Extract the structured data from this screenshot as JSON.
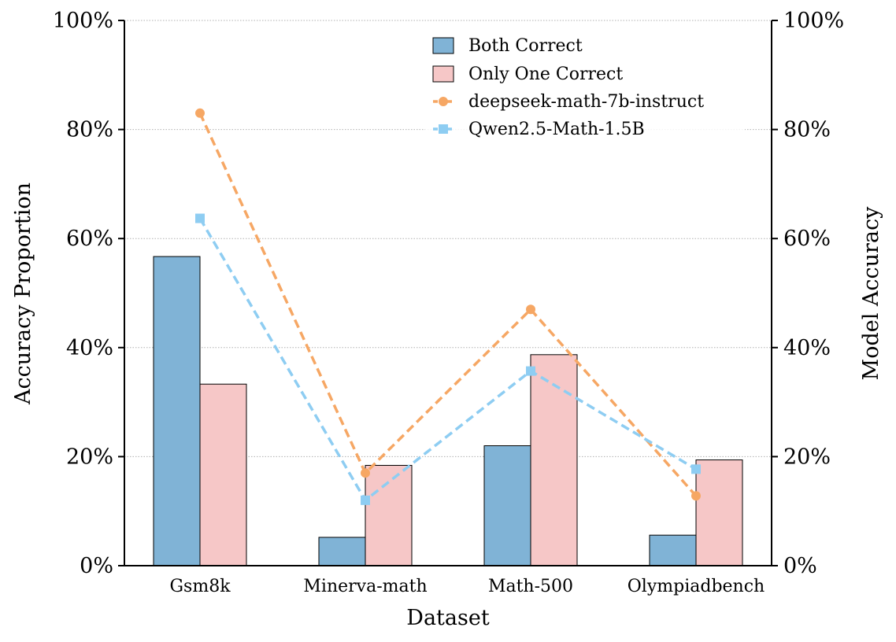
{
  "chart_data": {
    "type": "bar",
    "title": "",
    "xlabel": "Dataset",
    "ylabel": "Accuracy Proportion",
    "ylabel_right": "Model Accuracy",
    "categories": [
      "Gsm8k",
      "Minerva-math",
      "Math-500",
      "Olympiadbench"
    ],
    "ylim": [
      0,
      100
    ],
    "y2lim": [
      0,
      100
    ],
    "yticks": [
      "0%",
      "20%",
      "40%",
      "60%",
      "80%",
      "100%"
    ],
    "y2ticks": [
      "0%",
      "20%",
      "40%",
      "60%",
      "80%",
      "100%"
    ],
    "grid": true,
    "legend_position": "top-right",
    "bar_series": [
      {
        "name": "Both Correct",
        "values": [
          56.7,
          5.2,
          22.0,
          5.6
        ],
        "color": "#80b3d6"
      },
      {
        "name": "Only One Correct",
        "values": [
          33.3,
          18.4,
          38.7,
          19.4
        ],
        "color": "#f6c7c7"
      }
    ],
    "line_series": [
      {
        "name": "deepseek-math-7b-instruct",
        "values": [
          83.0,
          17.0,
          47.0,
          12.8
        ],
        "color": "#f6a764",
        "marker": "circle"
      },
      {
        "name": "Qwen2.5-Math-1.5B",
        "values": [
          63.7,
          12.0,
          35.7,
          17.7
        ],
        "color": "#8ecdf2",
        "marker": "square"
      }
    ]
  }
}
